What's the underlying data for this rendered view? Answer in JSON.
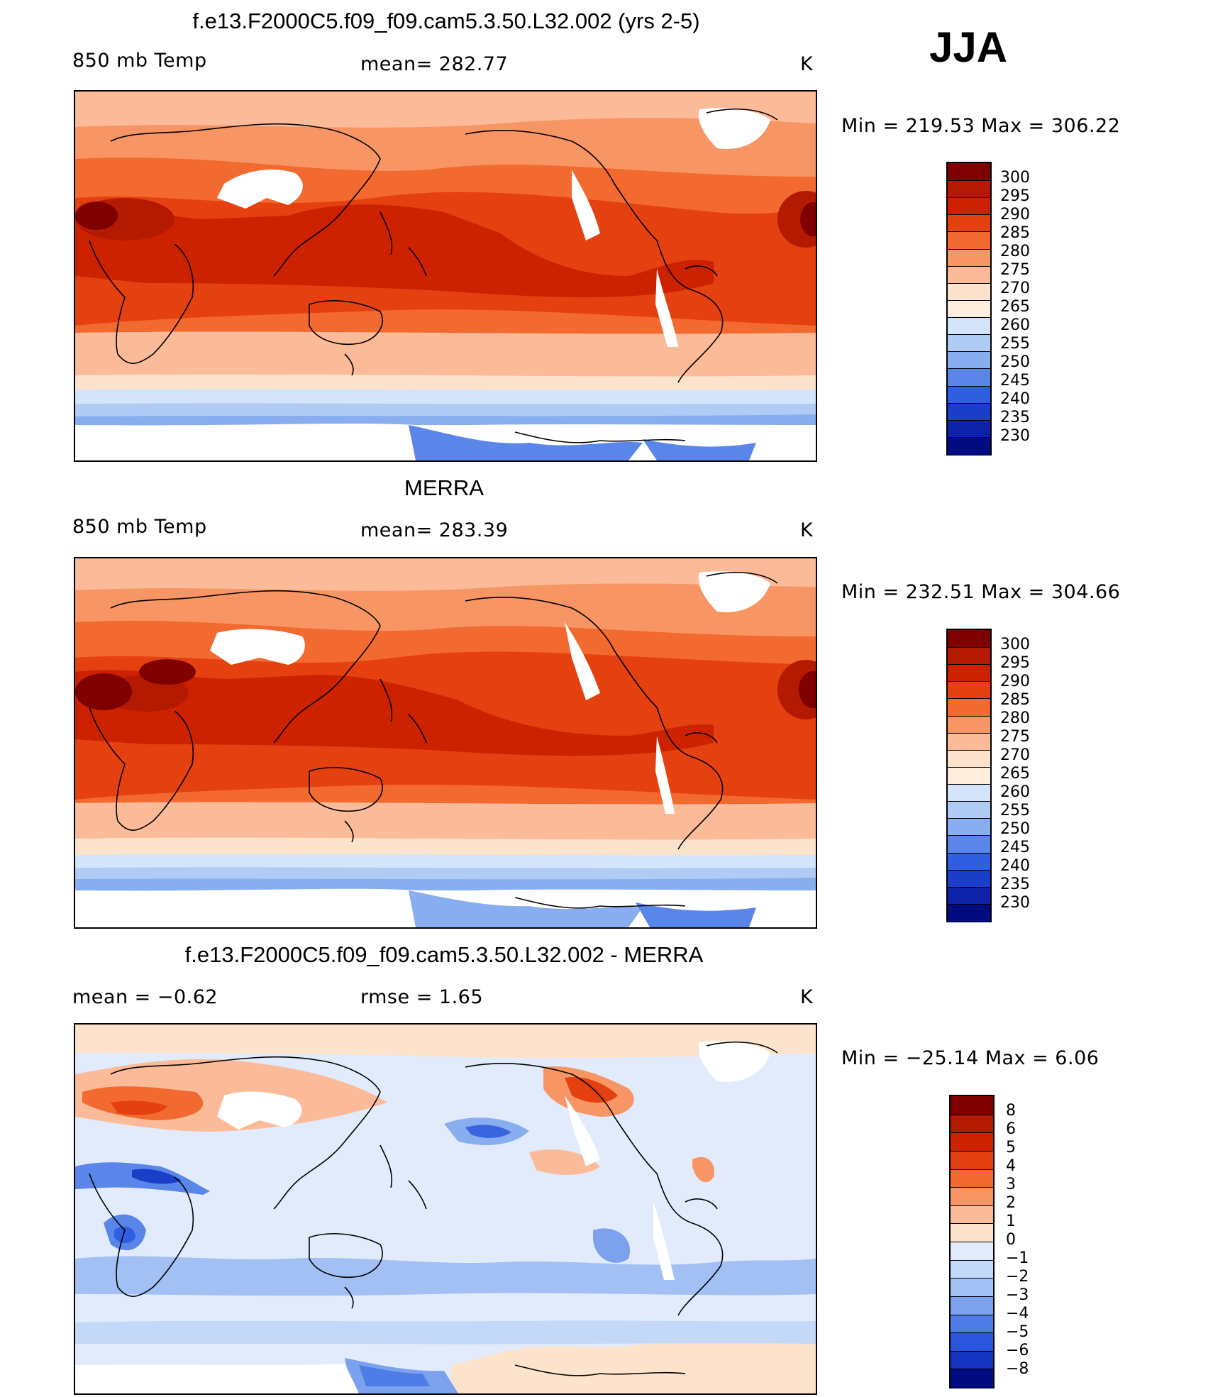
{
  "season": "JJA",
  "panels": [
    {
      "id": "model",
      "title": "f.e13.F2000C5.f09_f09.cam5.3.50.L32.002 (yrs 2-5)",
      "left_label": "850 mb Temp",
      "center_label": "mean= 282.77",
      "right_label": "K",
      "minmax": "Min  =  219.53  Max  =  306.22",
      "legend_labels": [
        "300",
        "295",
        "290",
        "285",
        "280",
        "275",
        "270",
        "265",
        "260",
        "255",
        "250",
        "245",
        "240",
        "235",
        "230"
      ],
      "legend_colors": [
        "#800000",
        "#b31a00",
        "#cc2200",
        "#e54010",
        "#f26a30",
        "#f89564",
        "#fbbb99",
        "#fde3cc",
        "#ffeedd",
        "#d4e4fb",
        "#b0ccf5",
        "#89aef0",
        "#5a86ea",
        "#2f5fe0",
        "#1a3ec8",
        "#0d22a8",
        "#000c80"
      ]
    },
    {
      "id": "obs",
      "title": "MERRA",
      "left_label": "850 mb Temp",
      "center_label": "mean= 283.39",
      "right_label": "K",
      "minmax": "Min  =  232.51  Max  =  304.66",
      "legend_labels": [
        "300",
        "295",
        "290",
        "285",
        "280",
        "275",
        "270",
        "265",
        "260",
        "255",
        "250",
        "245",
        "240",
        "235",
        "230"
      ],
      "legend_colors": [
        "#800000",
        "#b31a00",
        "#cc2200",
        "#e54010",
        "#f26a30",
        "#f89564",
        "#fbbb99",
        "#fde3cc",
        "#ffeedd",
        "#d4e4fb",
        "#b0ccf5",
        "#89aef0",
        "#5a86ea",
        "#2f5fe0",
        "#1a3ec8",
        "#0d22a8",
        "#000c80"
      ]
    },
    {
      "id": "diff",
      "title": "f.e13.F2000C5.f09_f09.cam5.3.50.L32.002 - MERRA",
      "left_label": "mean =   −0.62",
      "center_label": "rmse =    1.65",
      "right_label": "K",
      "minmax": "Min  =  −25.14  Max  =      6.06",
      "legend_labels": [
        "8",
        "6",
        "5",
        "4",
        "3",
        "2",
        "1",
        "0",
        "−1",
        "−2",
        "−3",
        "−4",
        "−5",
        "−6",
        "−8"
      ],
      "legend_colors": [
        "#800000",
        "#b31a00",
        "#cc2200",
        "#e54010",
        "#f26a30",
        "#f89564",
        "#fbbb99",
        "#fde3cc",
        "#e1ebfc",
        "#c4d8f8",
        "#a2c0f3",
        "#7ca2ee",
        "#4f7de8",
        "#2a55dc",
        "#1535c0",
        "#000c80"
      ]
    }
  ],
  "colors": {
    "warm_dark": "#c0260a",
    "warm_mid": "#e84a18",
    "warm_light": "#f59a70",
    "neutral": "#fde8d8",
    "cool_light": "#cfe0fa",
    "cool_mid": "#8fb2f0",
    "cool_dark": "#3a64de"
  }
}
